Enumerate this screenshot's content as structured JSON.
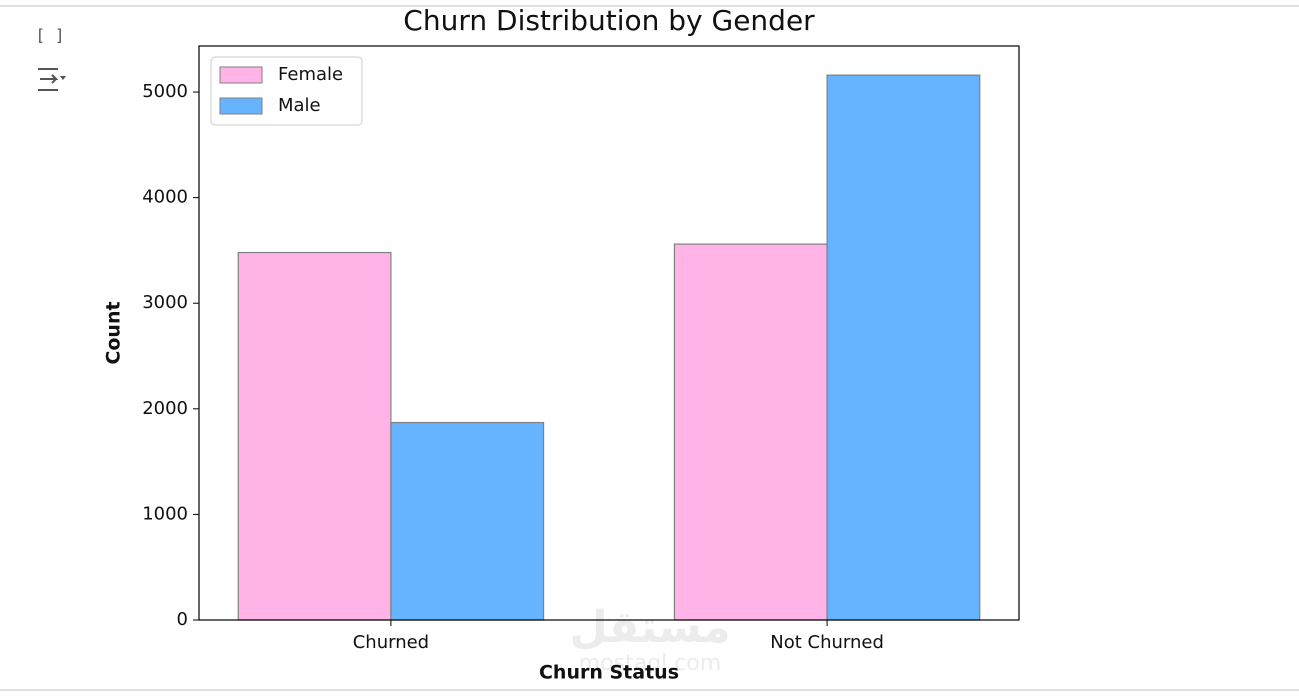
{
  "cell": {
    "prompt": "[ ]"
  },
  "watermark": [
    "مستقل",
    "mostaql.com"
  ],
  "chart_data": {
    "type": "bar",
    "title": "Churn Distribution by Gender",
    "x_label": "Churn Status",
    "y_label": "Count",
    "categories": [
      "Churned",
      "Not Churned"
    ],
    "series": [
      {
        "name": "Female",
        "color": "#ffb3e6",
        "values": [
          3480,
          3560
        ]
      },
      {
        "name": "Male",
        "color": "#66b3ff",
        "values": [
          1870,
          5160
        ]
      }
    ],
    "edge_color": "#808080",
    "ylim": [
      0,
      5436
    ],
    "yticks": [
      0,
      1000,
      2000,
      3000,
      4000,
      5000
    ],
    "legend": "upper left"
  }
}
